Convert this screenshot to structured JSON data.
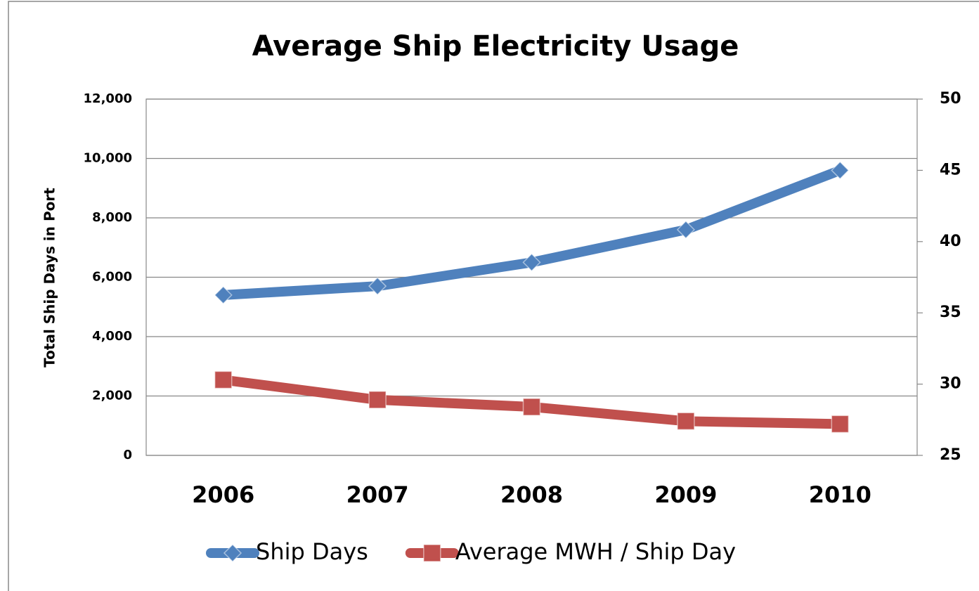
{
  "chart_data": {
    "type": "line",
    "title": "Average Ship Electricity Usage",
    "y_label": "Total Ship Days in Port",
    "categories": [
      "2006",
      "2007",
      "2008",
      "2009",
      "2010"
    ],
    "series": [
      {
        "name": "Ship Days",
        "color": "#4f81bd",
        "marker": "diamond",
        "values": [
          5400,
          5700,
          6500,
          7600,
          9600
        ]
      },
      {
        "name": "Average MWH / Ship Day",
        "color": "#c0504d",
        "marker": "square",
        "axis": "y2",
        "values": [
          30.3,
          28.9,
          28.4,
          27.4,
          27.2
        ]
      }
    ],
    "ylim": [
      0,
      12000
    ],
    "yticks": [
      0,
      {
        "value": 2000,
        "label": "2,000"
      },
      {
        "value": 4000,
        "label": "4,000"
      },
      {
        "value": 6000,
        "label": "6,000"
      },
      {
        "value": 8000,
        "label": "8,000"
      },
      {
        "value": 10000,
        "label": "10,000"
      },
      {
        "value": 12000,
        "label": "12,000"
      }
    ],
    "y2lim": [
      25,
      50
    ],
    "y2ticks": [
      25,
      30,
      35,
      40,
      45,
      50
    ],
    "grid": true,
    "legend": "bottom"
  }
}
